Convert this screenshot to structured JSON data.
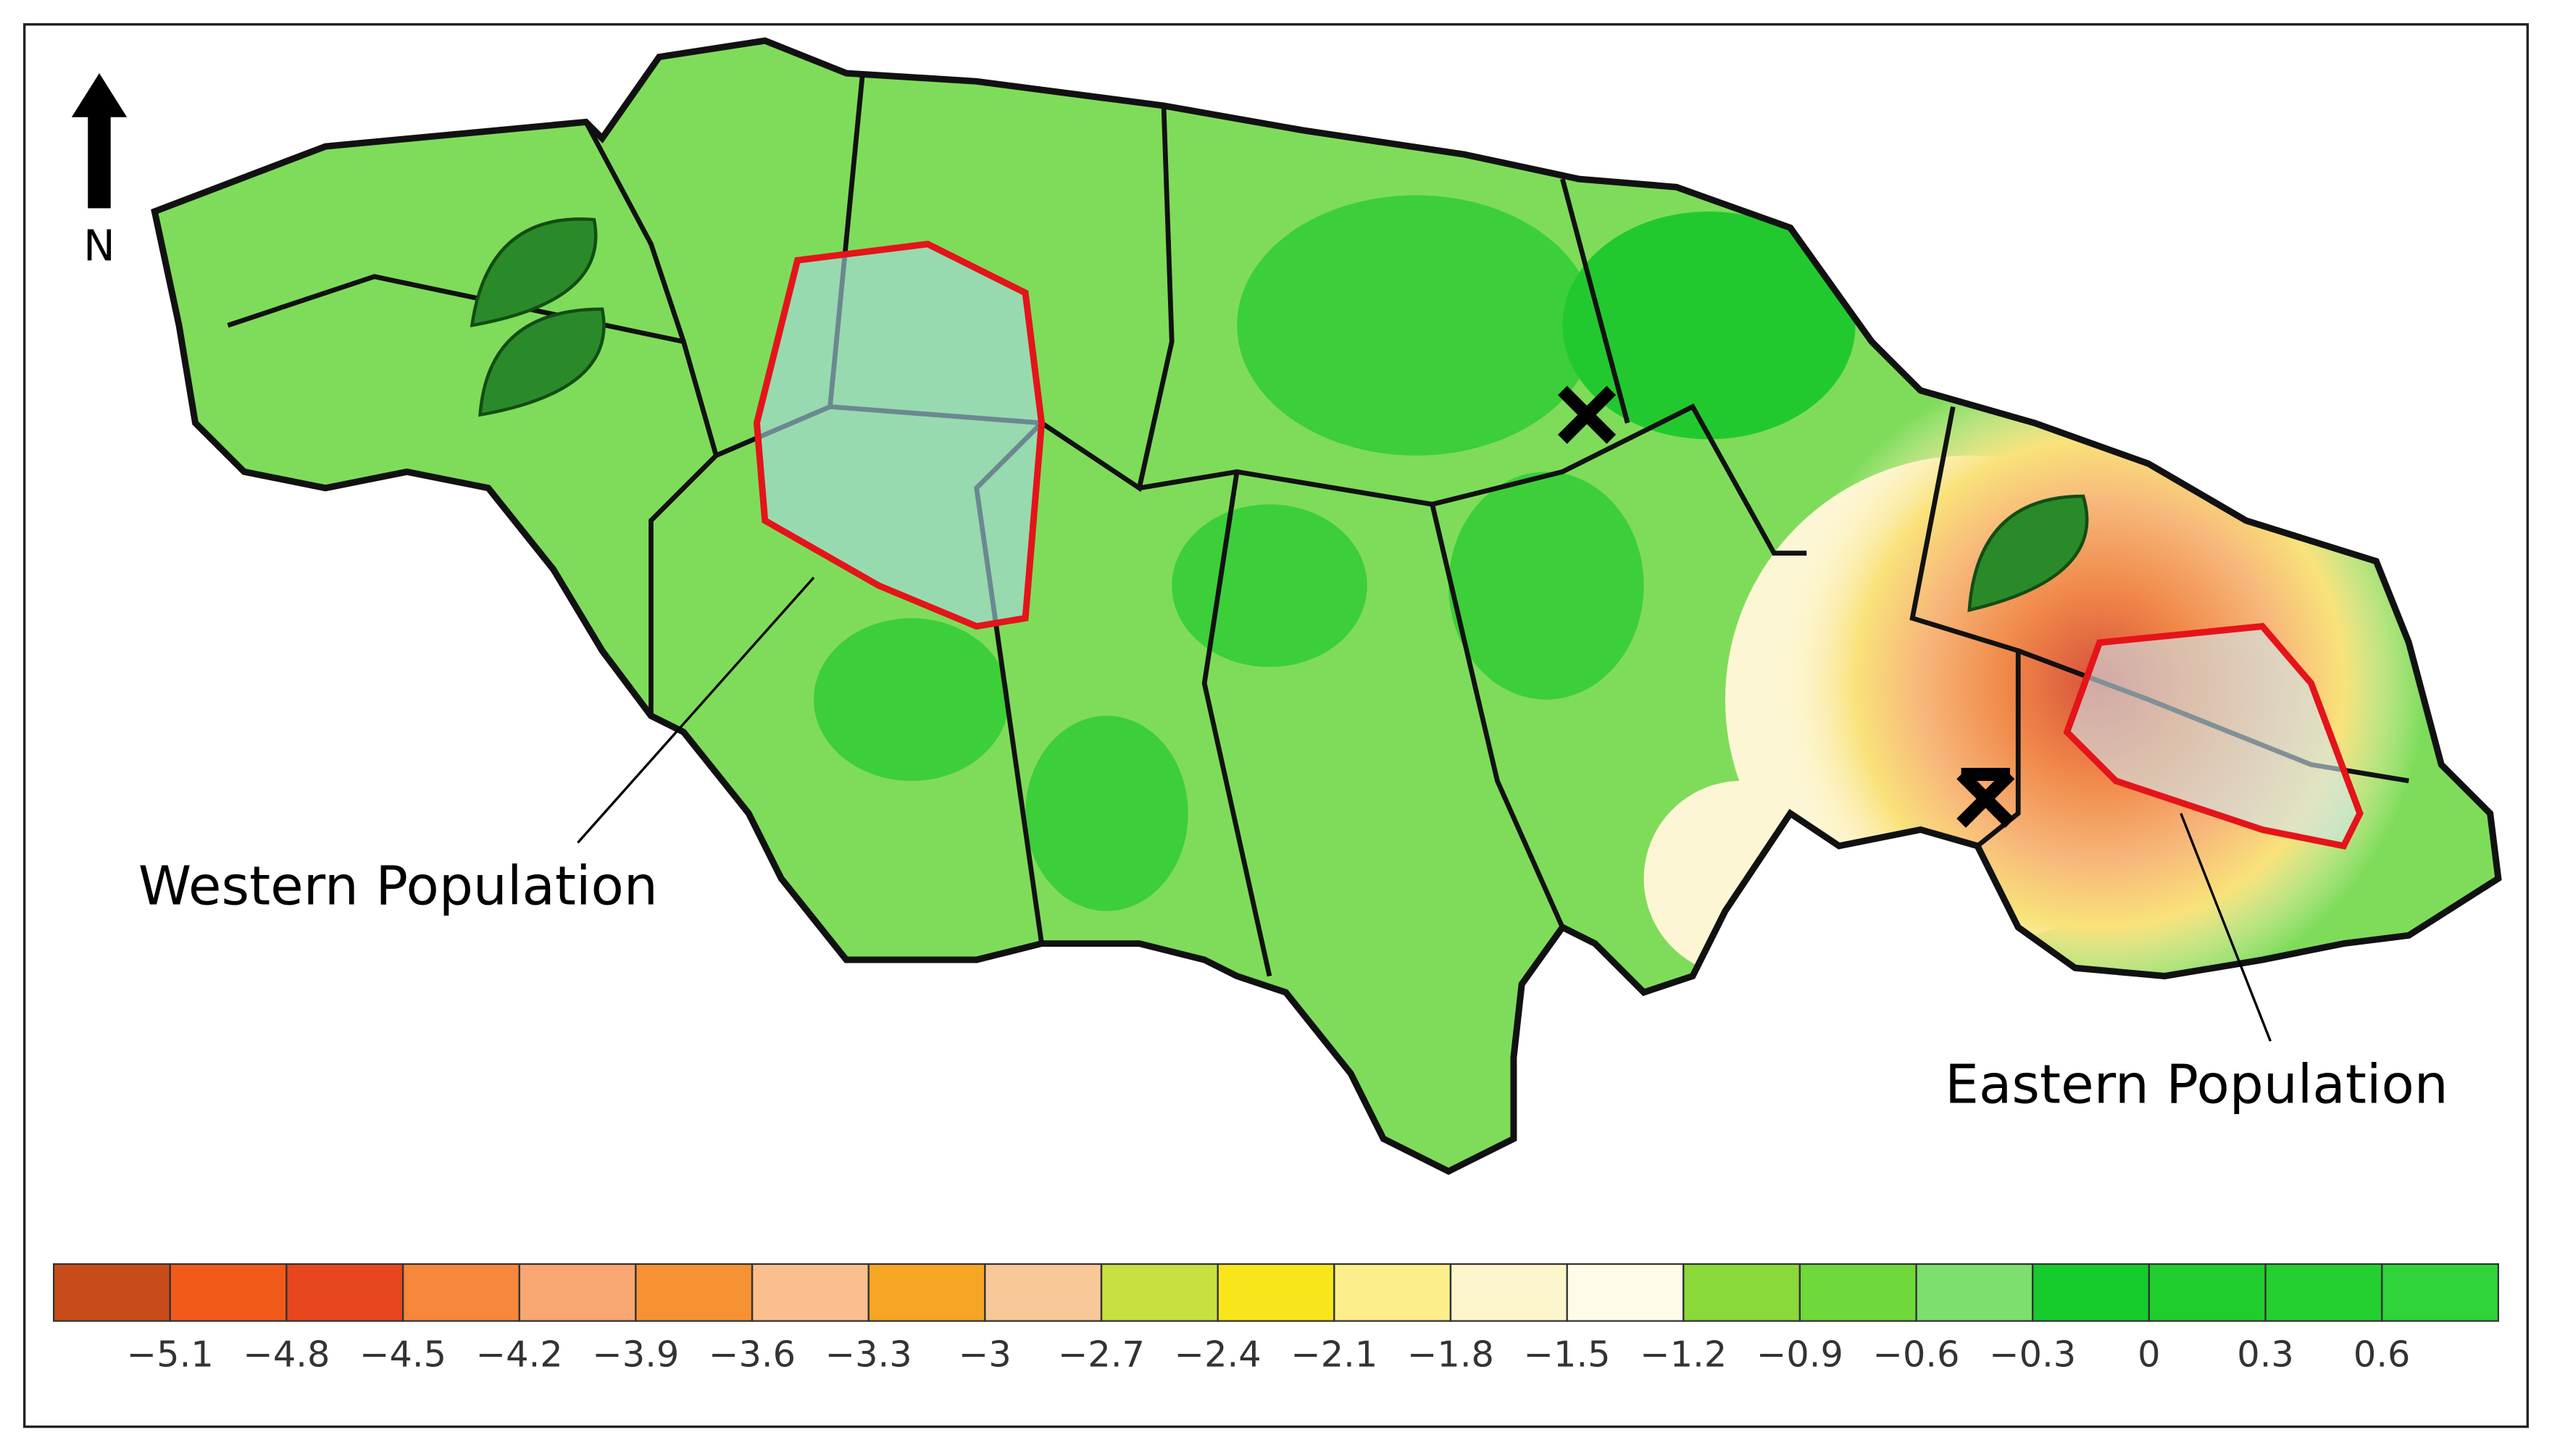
{
  "north_label": "N",
  "annotations": {
    "western": "Western Population",
    "eastern": "Eastern Population"
  },
  "legend": {
    "clim": [
      -5.4,
      0.9
    ],
    "colors": [
      "#c84b1a",
      "#f25a1a",
      "#e8461e",
      "#f7873a",
      "#f9a672",
      "#f79234",
      "#fbbf8e",
      "#f6a624",
      "#f9c898",
      "#c8e040",
      "#f9e61a",
      "#fcee8a",
      "#fdf6cc",
      "#fffbe8",
      "#8ad93a",
      "#6fd83a",
      "#7ddf6e",
      "#16cc2d",
      "#1fcd2c",
      "#24cf30",
      "#2ed43a"
    ],
    "ticks": [
      {
        "value": -5.1,
        "label": "−5.1"
      },
      {
        "value": -4.8,
        "label": "−4.8"
      },
      {
        "value": -4.5,
        "label": "−4.5"
      },
      {
        "value": -4.2,
        "label": "−4.2"
      },
      {
        "value": -3.9,
        "label": "−3.9"
      },
      {
        "value": -3.6,
        "label": "−3.6"
      },
      {
        "value": -3.3,
        "label": "−3.3"
      },
      {
        "value": -3,
        "label": "−3"
      },
      {
        "value": -2.7,
        "label": "−2.7"
      },
      {
        "value": -2.4,
        "label": "−2.4"
      },
      {
        "value": -2.1,
        "label": "−2.1"
      },
      {
        "value": -1.8,
        "label": "−1.8"
      },
      {
        "value": -1.5,
        "label": "−1.5"
      },
      {
        "value": -1.2,
        "label": "−1.2"
      },
      {
        "value": -0.9,
        "label": "−0.9"
      },
      {
        "value": -0.6,
        "label": "−0.6"
      },
      {
        "value": -0.3,
        "label": "−0.3"
      },
      0,
      0.3,
      0.6
    ]
  }
}
